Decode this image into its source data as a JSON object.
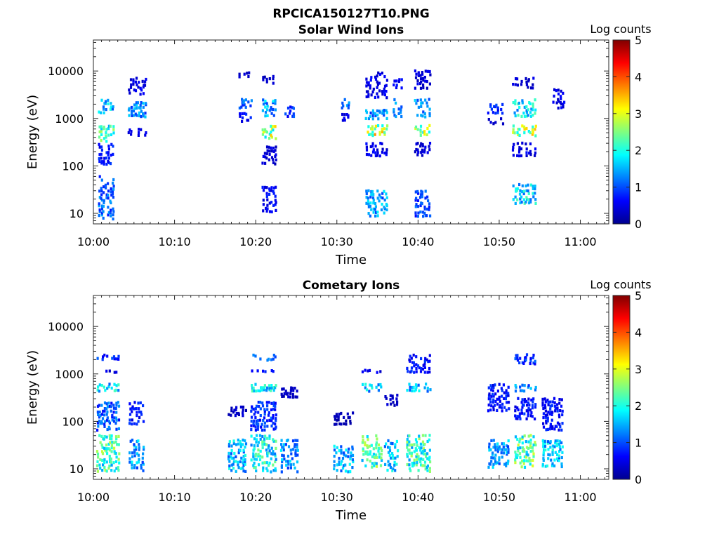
{
  "figure_title": "RPCICA150127T10.PNG",
  "chart_data": [
    {
      "type": "heatmap",
      "title": "Solar Wind Ions",
      "xlabel": "Time",
      "ylabel": "Energy (eV)",
      "x_ticks": [
        "10:00",
        "10:10",
        "10:20",
        "10:30",
        "10:40",
        "10:50",
        "11:00"
      ],
      "x_tick_minutes": [
        0,
        10,
        20,
        30,
        40,
        50,
        60
      ],
      "xlim_minutes": [
        0,
        63.5
      ],
      "y_scale": "log",
      "y_ticks": [
        "10",
        "100",
        "1000",
        "10000"
      ],
      "y_tick_values": [
        10,
        100,
        1000,
        10000
      ],
      "ylim": [
        6,
        45000
      ],
      "colorbar": {
        "title": "Log counts",
        "ticks": [
          "0",
          "1",
          "2",
          "3",
          "4",
          "5"
        ],
        "range": [
          0,
          5
        ],
        "colormap": "jet"
      },
      "bursts": [
        {
          "t": [
            0.5,
            2.5
          ],
          "clusters": [
            [
              300,
              700,
              2.5
            ],
            [
              1200,
              2400,
              1.8
            ],
            [
              7,
              60,
              1.3
            ],
            [
              100,
              300,
              0.8
            ]
          ]
        },
        {
          "t": [
            4.2,
            6.5
          ],
          "clusters": [
            [
              1000,
              2200,
              1.5
            ],
            [
              3000,
              7000,
              0.6
            ],
            [
              400,
              600,
              0.5
            ]
          ]
        },
        {
          "t": [
            17.8,
            19.5
          ],
          "clusters": [
            [
              800,
              1300,
              0.8
            ],
            [
              1500,
              2500,
              1.2
            ],
            [
              7000,
              9000,
              0.5
            ]
          ]
        },
        {
          "t": [
            20.7,
            22.5
          ],
          "clusters": [
            [
              350,
              700,
              3.0
            ],
            [
              1000,
              2500,
              1.7
            ],
            [
              10,
              35,
              0.7
            ],
            [
              100,
              250,
              0.5
            ],
            [
              5000,
              8000,
              0.4
            ]
          ]
        },
        {
          "t": [
            23.5,
            24.8
          ],
          "clusters": [
            [
              1000,
              2000,
              1.0
            ]
          ]
        },
        {
          "t": [
            30.5,
            31.5
          ],
          "clusters": [
            [
              1500,
              2500,
              1.3
            ],
            [
              800,
              1200,
              0.6
            ]
          ]
        },
        {
          "t": [
            33.4,
            36.2
          ],
          "clusters": [
            [
              400,
              700,
              3.3
            ],
            [
              900,
              1500,
              1.5
            ],
            [
              8,
              30,
              1.6
            ],
            [
              2500,
              9000,
              0.6
            ],
            [
              150,
              300,
              0.6
            ]
          ]
        },
        {
          "t": [
            36.8,
            38.0
          ],
          "clusters": [
            [
              1000,
              2500,
              1.4
            ],
            [
              4000,
              7000,
              0.7
            ]
          ]
        },
        {
          "t": [
            39.5,
            41.5
          ],
          "clusters": [
            [
              400,
              700,
              3.0
            ],
            [
              1000,
              2500,
              1.5
            ],
            [
              8,
              30,
              1.1
            ],
            [
              4000,
              10000,
              0.5
            ],
            [
              150,
              300,
              0.5
            ]
          ]
        },
        {
          "t": [
            48.5,
            50.5
          ],
          "clusters": [
            [
              1200,
              2000,
              0.9
            ],
            [
              700,
              1000,
              0.5
            ]
          ]
        },
        {
          "t": [
            51.5,
            54.5
          ],
          "clusters": [
            [
              400,
              700,
              3.0
            ],
            [
              1000,
              2500,
              2.0
            ],
            [
              15,
              40,
              2.0
            ],
            [
              150,
              300,
              0.6
            ],
            [
              4000,
              7000,
              0.5
            ]
          ]
        },
        {
          "t": [
            56.5,
            58.0
          ],
          "clusters": [
            [
              1500,
              4000,
              0.6
            ]
          ]
        }
      ]
    },
    {
      "type": "heatmap",
      "title": "Cometary Ions",
      "xlabel": "Time",
      "ylabel": "Energy (eV)",
      "x_ticks": [
        "10:00",
        "10:10",
        "10:20",
        "10:30",
        "10:40",
        "10:50",
        "11:00"
      ],
      "x_tick_minutes": [
        0,
        10,
        20,
        30,
        40,
        50,
        60
      ],
      "xlim_minutes": [
        0,
        63.5
      ],
      "y_scale": "log",
      "y_ticks": [
        "10",
        "100",
        "1000",
        "10000"
      ],
      "y_tick_values": [
        10,
        100,
        1000,
        10000
      ],
      "ylim": [
        6,
        45000
      ],
      "colorbar": {
        "title": "Log counts",
        "ticks": [
          "0",
          "1",
          "2",
          "3",
          "4",
          "5"
        ],
        "range": [
          0,
          5
        ],
        "colormap": "jet"
      },
      "bursts": [
        {
          "t": [
            0.3,
            3.2
          ],
          "clusters": [
            [
              8,
              50,
              2.5
            ],
            [
              400,
              600,
              2.0
            ],
            [
              60,
              250,
              1.2
            ],
            [
              1800,
              2500,
              1.0
            ],
            [
              1000,
              1200,
              0.5
            ]
          ]
        },
        {
          "t": [
            4.3,
            6.2
          ],
          "clusters": [
            [
              8,
              40,
              1.6
            ],
            [
              80,
              250,
              0.8
            ]
          ]
        },
        {
          "t": [
            16.5,
            18.8
          ],
          "clusters": [
            [
              8,
              40,
              1.8
            ],
            [
              120,
              200,
              0.4
            ]
          ]
        },
        {
          "t": [
            19.3,
            22.5
          ],
          "clusters": [
            [
              8,
              50,
              2.2
            ],
            [
              400,
              600,
              2.0
            ],
            [
              1800,
              2500,
              1.2
            ],
            [
              1000,
              1200,
              0.8
            ],
            [
              60,
              250,
              1.0
            ]
          ]
        },
        {
          "t": [
            23.0,
            25.2
          ],
          "clusters": [
            [
              8,
              40,
              1.6
            ],
            [
              300,
              500,
              0.4
            ]
          ]
        },
        {
          "t": [
            29.5,
            32.0
          ],
          "clusters": [
            [
              8,
              30,
              1.7
            ],
            [
              80,
              150,
              0.3
            ]
          ]
        },
        {
          "t": [
            33.0,
            35.5
          ],
          "clusters": [
            [
              10,
              50,
              2.6
            ],
            [
              400,
              600,
              1.8
            ],
            [
              1000,
              1200,
              0.6
            ]
          ]
        },
        {
          "t": [
            35.8,
            37.5
          ],
          "clusters": [
            [
              8,
              40,
              1.8
            ],
            [
              200,
              350,
              0.4
            ]
          ]
        },
        {
          "t": [
            38.5,
            41.5
          ],
          "clusters": [
            [
              8,
              50,
              2.4
            ],
            [
              400,
              600,
              1.7
            ],
            [
              1000,
              2500,
              0.8
            ]
          ]
        },
        {
          "t": [
            48.5,
            51.2
          ],
          "clusters": [
            [
              10,
              40,
              1.6
            ],
            [
              150,
              600,
              0.8
            ]
          ]
        },
        {
          "t": [
            51.8,
            54.5
          ],
          "clusters": [
            [
              10,
              50,
              2.6
            ],
            [
              400,
              600,
              1.5
            ],
            [
              1500,
              2500,
              1.0
            ],
            [
              100,
              300,
              0.8
            ]
          ]
        },
        {
          "t": [
            55.2,
            57.8
          ],
          "clusters": [
            [
              10,
              40,
              1.8
            ],
            [
              60,
              300,
              0.8
            ]
          ]
        }
      ]
    }
  ]
}
